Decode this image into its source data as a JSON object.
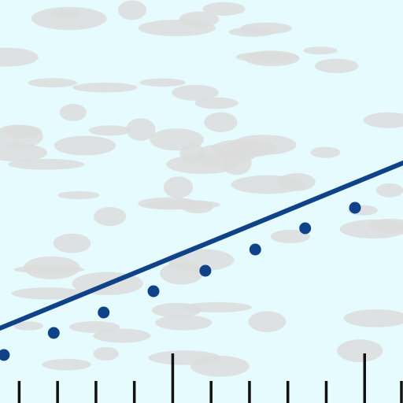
{
  "chart_data": {
    "type": "scatter",
    "title": "",
    "xlabel": "",
    "ylabel": "",
    "x_range": [
      0,
      10.5
    ],
    "y_range": [
      0,
      10.24
    ],
    "grid": false,
    "legend": "none",
    "series": [
      {
        "type": "scatter",
        "x": [
          0.1,
          1.4,
          2.7,
          4.0,
          5.35,
          6.65,
          7.95,
          9.25
        ],
        "y": [
          1.22,
          1.78,
          2.3,
          2.84,
          3.36,
          3.9,
          4.44,
          4.96
        ]
      },
      {
        "type": "line",
        "x": [
          0,
          10.5
        ],
        "y": [
          1.9,
          6.1
        ]
      }
    ],
    "x_ticks": [
      0.5,
      1.5,
      2.5,
      3.5,
      4.5,
      5.5,
      6.5,
      7.5,
      8.5,
      9.5,
      10.5
    ],
    "x_major_ticks": [
      4.5,
      9.5
    ]
  },
  "style": {
    "background": "#e6fbfd",
    "blotch": "#dcdcdc",
    "series_color": "#10428a",
    "tick_color": "#111111"
  }
}
